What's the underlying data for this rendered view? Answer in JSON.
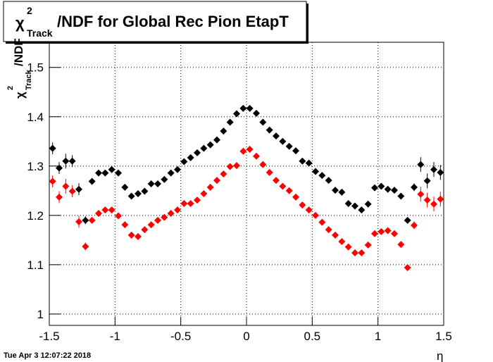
{
  "chart_data": {
    "type": "scatter",
    "title": {
      "symbol": "χ",
      "sup": "2",
      "sub": "Track",
      "text": "/NDF for Global Rec Pion EtapT"
    },
    "ylabel": {
      "symbol": "χ",
      "sup": "2",
      "sub": "Track",
      "text": "/NDF"
    },
    "xlabel": "η",
    "timestamp": "Tue Apr  3 12:07:22 2018",
    "xlim": [
      -1.5,
      1.5
    ],
    "xticks": [
      -1.5,
      -1,
      -0.5,
      0,
      0.5,
      1,
      1.5
    ],
    "ylim": [
      0.977,
      1.551
    ],
    "yticks": [
      1,
      1.1,
      1.2,
      1.3,
      1.4,
      1.5
    ],
    "grid": true,
    "x": [
      -1.475,
      -1.425,
      -1.375,
      -1.325,
      -1.275,
      -1.225,
      -1.175,
      -1.125,
      -1.075,
      -1.025,
      -0.975,
      -0.925,
      -0.875,
      -0.825,
      -0.775,
      -0.725,
      -0.675,
      -0.625,
      -0.575,
      -0.525,
      -0.475,
      -0.425,
      -0.375,
      -0.325,
      -0.275,
      -0.225,
      -0.175,
      -0.125,
      -0.075,
      -0.025,
      0.025,
      0.075,
      0.125,
      0.175,
      0.225,
      0.275,
      0.325,
      0.375,
      0.425,
      0.475,
      0.525,
      0.575,
      0.625,
      0.675,
      0.725,
      0.775,
      0.825,
      0.875,
      0.925,
      0.975,
      1.025,
      1.075,
      1.125,
      1.175,
      1.225,
      1.275,
      1.325,
      1.375,
      1.425,
      1.475
    ],
    "series": [
      {
        "color": "#000000",
        "values": [
          1.336,
          1.296,
          1.31,
          1.31,
          1.253,
          1.19,
          1.269,
          1.286,
          1.286,
          1.293,
          1.286,
          1.257,
          1.239,
          1.244,
          1.249,
          1.264,
          1.264,
          1.273,
          1.286,
          1.293,
          1.309,
          1.317,
          1.327,
          1.336,
          1.343,
          1.353,
          1.371,
          1.389,
          1.406,
          1.417,
          1.417,
          1.407,
          1.389,
          1.373,
          1.361,
          1.35,
          1.34,
          1.331,
          1.31,
          1.306,
          1.289,
          1.281,
          1.271,
          1.251,
          1.247,
          1.224,
          1.219,
          1.211,
          1.223,
          1.256,
          1.259,
          1.253,
          1.251,
          1.239,
          1.19,
          1.257,
          1.303,
          1.27,
          1.293,
          1.287
        ],
        "errors": [
          0.012,
          0.012,
          0.015,
          0.012,
          0.012,
          0.008,
          0.006,
          0.005,
          0.005,
          0.005,
          0.004,
          0.004,
          0.003,
          0.003,
          0.003,
          0.003,
          0.003,
          0.003,
          0.003,
          0.003,
          0.003,
          0.003,
          0.003,
          0.003,
          0.003,
          0.003,
          0.003,
          0.003,
          0.003,
          0.003,
          0.003,
          0.003,
          0.003,
          0.003,
          0.003,
          0.003,
          0.003,
          0.003,
          0.003,
          0.003,
          0.003,
          0.003,
          0.003,
          0.003,
          0.003,
          0.003,
          0.003,
          0.003,
          0.003,
          0.004,
          0.004,
          0.005,
          0.005,
          0.005,
          0.006,
          0.008,
          0.015,
          0.015,
          0.015,
          0.015
        ]
      },
      {
        "color": "#ff0000",
        "values": [
          1.269,
          1.237,
          1.259,
          1.249,
          1.187,
          1.137,
          1.19,
          1.204,
          1.211,
          1.211,
          1.199,
          1.181,
          1.16,
          1.157,
          1.171,
          1.181,
          1.19,
          1.196,
          1.204,
          1.211,
          1.224,
          1.224,
          1.231,
          1.244,
          1.257,
          1.271,
          1.284,
          1.299,
          1.301,
          1.33,
          1.334,
          1.32,
          1.303,
          1.287,
          1.271,
          1.259,
          1.25,
          1.237,
          1.221,
          1.211,
          1.2,
          1.186,
          1.171,
          1.16,
          1.147,
          1.136,
          1.124,
          1.124,
          1.14,
          1.163,
          1.167,
          1.169,
          1.163,
          1.141,
          1.094,
          1.18,
          1.243,
          1.231,
          1.223,
          1.233
        ],
        "errors": [
          0.012,
          0.012,
          0.015,
          0.012,
          0.012,
          0.008,
          0.006,
          0.005,
          0.005,
          0.005,
          0.004,
          0.004,
          0.003,
          0.003,
          0.003,
          0.003,
          0.003,
          0.003,
          0.003,
          0.003,
          0.003,
          0.003,
          0.003,
          0.003,
          0.003,
          0.003,
          0.003,
          0.003,
          0.003,
          0.003,
          0.003,
          0.003,
          0.003,
          0.003,
          0.003,
          0.003,
          0.003,
          0.003,
          0.003,
          0.003,
          0.003,
          0.003,
          0.003,
          0.003,
          0.003,
          0.003,
          0.003,
          0.003,
          0.003,
          0.004,
          0.004,
          0.005,
          0.005,
          0.005,
          0.006,
          0.008,
          0.015,
          0.015,
          0.015,
          0.015
        ]
      }
    ]
  }
}
